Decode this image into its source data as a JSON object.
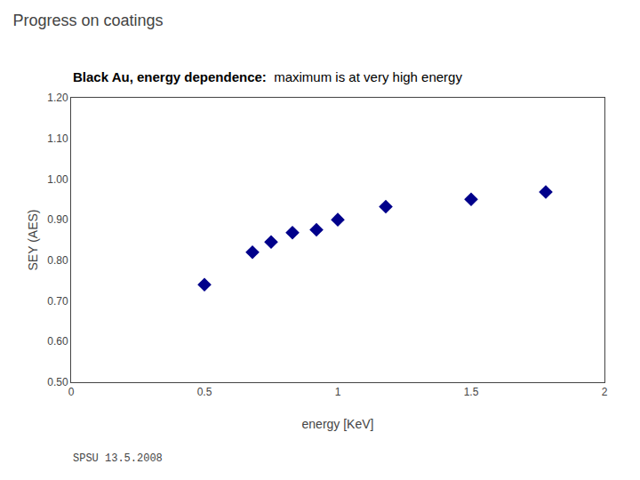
{
  "chart_data": {
    "type": "scatter",
    "title": "Progress on coatings",
    "subtitle": [
      "Black Au, energy dependence:",
      "  maximum is at very high energy"
    ],
    "x_label": "energy [KeV]",
    "y_label": "SEY (AES)",
    "x": [
      0.5,
      0.68,
      0.75,
      0.83,
      0.92,
      1.0,
      1.18,
      1.5,
      1.78
    ],
    "values": [
      0.74,
      0.82,
      0.845,
      0.868,
      0.875,
      0.9,
      0.932,
      0.95,
      0.968
    ],
    "color": "#00008B",
    "marker": "diamond",
    "xlim": [
      0,
      2
    ],
    "ylim": [
      0.5,
      1.2
    ],
    "xticks": [
      0,
      0.5,
      1,
      1.5,
      2
    ],
    "yticks": [
      {
        "value": 0.5,
        "label": "0.50"
      },
      {
        "value": 0.6,
        "label": "0.60"
      },
      {
        "value": 0.7,
        "label": "0.70"
      },
      {
        "value": 0.8,
        "label": "0.80"
      },
      {
        "value": 0.9,
        "label": "0.90"
      },
      {
        "value": 1.0,
        "label": "1.00"
      },
      {
        "value": 1.1,
        "label": "1.10"
      },
      {
        "value": 1.2,
        "label": "1.20"
      }
    ],
    "grid": false,
    "annotations": [
      {
        "text": "SPSU 13.5.2008"
      }
    ]
  }
}
